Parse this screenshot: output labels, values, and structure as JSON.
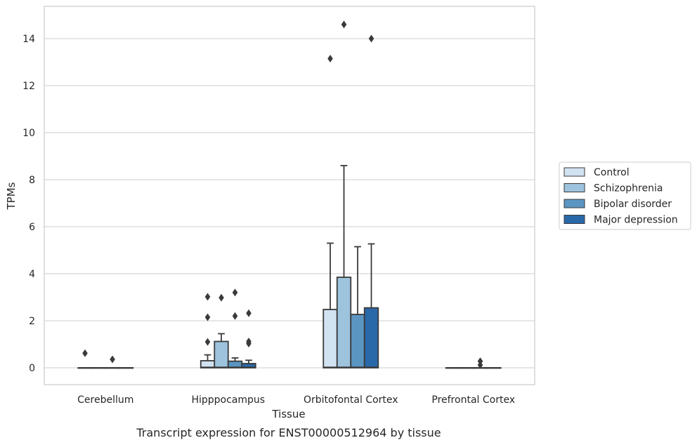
{
  "caption": "Transcript expression for ENST00000512964 by tissue",
  "chart_data": {
    "type": "box",
    "xlabel": "Tissue",
    "ylabel": "TPMs",
    "categories": [
      "Cerebellum",
      "Hipppocampus",
      "Orbitofontal Cortex",
      "Prefrontal Cortex"
    ],
    "ylim": [
      -0.7,
      15.3
    ],
    "yticks": [
      0,
      2,
      4,
      6,
      8,
      10,
      12,
      14
    ],
    "grid": "horizontal",
    "legend_position": "right",
    "series": [
      {
        "name": "Control",
        "color": "#d1e2f1",
        "boxes": [
          {
            "q1": 0,
            "median": 0,
            "q3": 0,
            "whisker_low": 0,
            "whisker_high": 0,
            "outliers": [
              0.62
            ]
          },
          {
            "q1": 0,
            "median": 0.02,
            "q3": 0.3,
            "whisker_low": 0,
            "whisker_high": 0.55,
            "outliers": [
              1.1,
              2.15,
              3.02
            ]
          },
          {
            "q1": 0,
            "median": 0.02,
            "q3": 2.48,
            "whisker_low": 0,
            "whisker_high": 5.3,
            "outliers": [
              13.15
            ]
          },
          {
            "q1": 0,
            "median": 0,
            "q3": 0,
            "whisker_low": 0,
            "whisker_high": 0,
            "outliers": []
          }
        ]
      },
      {
        "name": "Schizophrenia",
        "color": "#9dc3dd",
        "boxes": [
          {
            "q1": 0,
            "median": 0,
            "q3": 0,
            "whisker_low": 0,
            "whisker_high": 0,
            "outliers": []
          },
          {
            "q1": 0,
            "median": 0.02,
            "q3": 1.12,
            "whisker_low": 0,
            "whisker_high": 1.45,
            "outliers": [
              2.98
            ]
          },
          {
            "q1": 0,
            "median": 0.02,
            "q3": 3.85,
            "whisker_low": 0,
            "whisker_high": 8.6,
            "outliers": [
              14.6
            ]
          },
          {
            "q1": 0,
            "median": 0,
            "q3": 0,
            "whisker_low": 0,
            "whisker_high": 0,
            "outliers": []
          }
        ]
      },
      {
        "name": "Bipolar disorder",
        "color": "#5b95c2",
        "boxes": [
          {
            "q1": 0,
            "median": 0,
            "q3": 0,
            "whisker_low": 0,
            "whisker_high": 0,
            "outliers": [
              0.36
            ]
          },
          {
            "q1": 0,
            "median": 0.02,
            "q3": 0.28,
            "whisker_low": 0,
            "whisker_high": 0.42,
            "outliers": [
              2.2,
              3.2
            ]
          },
          {
            "q1": 0,
            "median": 0.02,
            "q3": 2.27,
            "whisker_low": 0,
            "whisker_high": 5.15,
            "outliers": []
          },
          {
            "q1": 0,
            "median": 0,
            "q3": 0,
            "whisker_low": 0,
            "whisker_high": 0,
            "outliers": [
              0.12,
              0.28
            ]
          }
        ]
      },
      {
        "name": "Major depression",
        "color": "#2a69a9",
        "boxes": [
          {
            "q1": 0,
            "median": 0,
            "q3": 0,
            "whisker_low": 0,
            "whisker_high": 0,
            "outliers": []
          },
          {
            "q1": 0,
            "median": 0.02,
            "q3": 0.18,
            "whisker_low": 0,
            "whisker_high": 0.32,
            "outliers": [
              1.03,
              1.12,
              2.32
            ]
          },
          {
            "q1": 0,
            "median": 0.02,
            "q3": 2.55,
            "whisker_low": 0,
            "whisker_high": 5.27,
            "outliers": [
              14.0
            ]
          },
          {
            "q1": 0,
            "median": 0,
            "q3": 0,
            "whisker_low": 0,
            "whisker_high": 0,
            "outliers": []
          }
        ]
      }
    ]
  }
}
